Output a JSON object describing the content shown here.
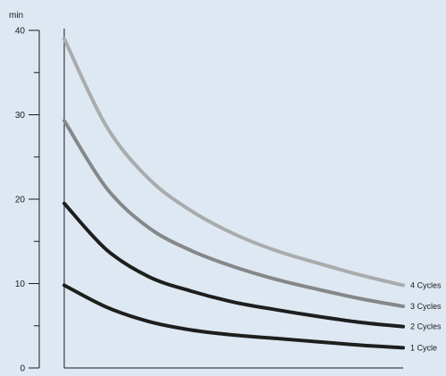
{
  "chart_data": {
    "type": "line",
    "ylabel": "min",
    "xlabel": "",
    "ylim": [
      0,
      40
    ],
    "y_ticks": [
      0,
      10,
      20,
      30,
      40
    ],
    "x": [
      0,
      1,
      2,
      3,
      4,
      5,
      6,
      7,
      8
    ],
    "series": [
      {
        "name": "4 Cycles",
        "color": "#a9abad",
        "values": [
          39,
          28.6,
          22.4,
          18.6,
          15.9,
          13.9,
          12.4,
          11.0,
          9.8
        ]
      },
      {
        "name": "3 Cycles",
        "color": "#858789",
        "values": [
          29.3,
          21.3,
          16.6,
          13.9,
          12.0,
          10.5,
          9.3,
          8.2,
          7.3
        ]
      },
      {
        "name": "2 Cycles",
        "color": "#1e1e1e",
        "values": [
          19.5,
          14.0,
          10.8,
          9.1,
          7.8,
          6.9,
          6.1,
          5.4,
          4.9
        ]
      },
      {
        "name": "1 Cycle",
        "color": "#1e1e1e",
        "values": [
          9.8,
          7.2,
          5.5,
          4.5,
          3.9,
          3.5,
          3.1,
          2.7,
          2.4
        ]
      }
    ],
    "grid": false,
    "legend": "right, at line ends"
  }
}
